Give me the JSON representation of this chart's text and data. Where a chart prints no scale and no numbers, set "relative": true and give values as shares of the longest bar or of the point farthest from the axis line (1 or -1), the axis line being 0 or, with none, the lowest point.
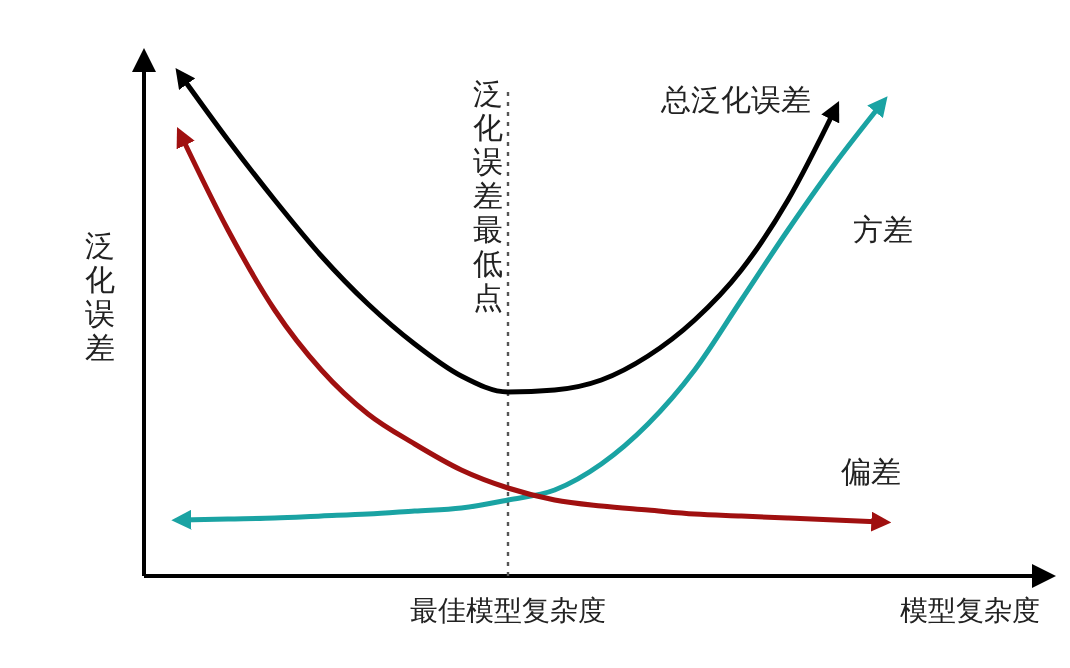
{
  "chart_data": {
    "type": "line",
    "relative": true,
    "ylabel": "泛化误差",
    "xlabel": "模型复杂度",
    "categories": [
      null,
      null,
      null,
      null,
      null,
      null,
      null,
      null,
      null,
      null,
      null,
      null,
      null,
      null,
      null,
      null
    ],
    "annotations": [
      "最佳模型复杂度"
    ],
    "series": [
      {
        "name": "总泛化误差",
        "color": "#000000",
        "values": [
          1,
          0.872,
          0.752,
          0.64,
          0.544,
          0.464,
          0.4,
          0.368,
          0.372,
          0.392,
          0.44,
          0.512,
          0.612,
          0.752,
          0.932,
          null
        ]
      },
      {
        "name": "方差",
        "color": "#1aa3a3",
        "values": [
          0.112,
          0.114,
          0.116,
          0.12,
          0.124,
          0.13,
          0.136,
          0.152,
          0.172,
          0.224,
          0.304,
          0.412,
          0.552,
          0.692,
          0.824,
          0.944
        ]
      },
      {
        "name": "偏差",
        "color": "#a01010",
        "values": [
          0.88,
          0.692,
          0.532,
          0.412,
          0.324,
          0.264,
          0.212,
          0.176,
          0.152,
          0.14,
          0.132,
          0.124,
          0.12,
          0.116,
          0.112,
          0.108
        ]
      }
    ],
    "ref_lines": [
      {
        "axis": "x",
        "label": "泛化误差最低点",
        "line_style": "dotted",
        "color": "#555555"
      }
    ],
    "grid": false,
    "legend": false,
    "marker": "none",
    "line_style": "solid"
  }
}
